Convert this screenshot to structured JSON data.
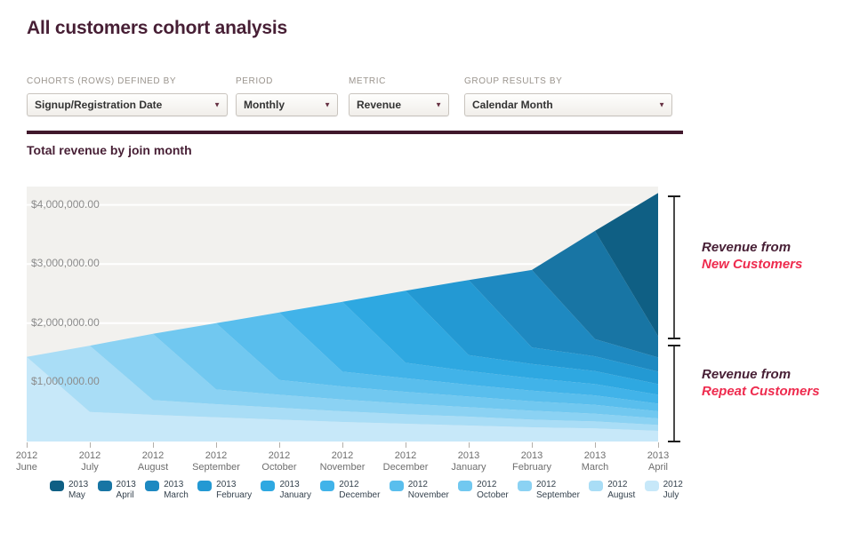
{
  "header": {
    "title": "All customers cohort analysis"
  },
  "filters": [
    {
      "label": "COHORTS (ROWS) DEFINED BY",
      "value": "Signup/Registration Date"
    },
    {
      "label": "PERIOD",
      "value": "Monthly"
    },
    {
      "label": "METRIC",
      "value": "Revenue"
    },
    {
      "label": "GROUP RESULTS BY",
      "value": "Calendar Month"
    }
  ],
  "annotations": {
    "new_customers": {
      "line1": "Revenue from",
      "line2": "New Customers"
    },
    "repeat_customers": {
      "line1": "Revenue from",
      "line2": "Repeat Customers"
    }
  },
  "colors": {
    "accent_maroon": "#471f35",
    "annotation_red": "#ee2b4e",
    "plot_bg": "#f2f1ee",
    "grid": "#ffffff",
    "axis_text": "#6e6e6e",
    "legend_text": "#35424e",
    "bracket": "#1c1c1c"
  },
  "icons": {
    "dropdown_arrow": "▼"
  },
  "chart_data": {
    "type": "area",
    "stacked": true,
    "title": "Total revenue by join month",
    "unit": "USD",
    "grid": "horizontal",
    "legend_position": "bottom",
    "legend_order": "newest-first",
    "ylim": [
      0,
      4310000
    ],
    "y_ticks": [
      {
        "label": "$4,000,000.00",
        "value": 4000000
      },
      {
        "label": "$3,000,000.00",
        "value": 3000000
      },
      {
        "label": "$2,000,000.00",
        "value": 2000000
      },
      {
        "label": "$1,000,000.00",
        "value": 1000000
      }
    ],
    "categories": [
      "2012 June",
      "2012 July",
      "2012 August",
      "2012 September",
      "2012 October",
      "2012 November",
      "2012 December",
      "2013 January",
      "2013 February",
      "2013 March",
      "2013 April"
    ],
    "totals_by_month": [
      1430000,
      1620000,
      1820000,
      2000000,
      2180000,
      2360000,
      2550000,
      2730000,
      2900000,
      3560000,
      4200000
    ],
    "series": [
      {
        "name": "2012 July",
        "color": "#c7e8f9",
        "values": [
          1430000,
          500000,
          450000,
          410000,
          370000,
          330000,
          300000,
          270000,
          240000,
          220000,
          180000
        ]
      },
      {
        "name": "2012 August",
        "color": "#a9ddf6",
        "values": [
          0,
          1120000,
          250000,
          220000,
          200000,
          180000,
          160000,
          150000,
          130000,
          120000,
          100000
        ]
      },
      {
        "name": "2012 September",
        "color": "#8bd2f3",
        "values": [
          0,
          0,
          1120000,
          250000,
          220000,
          200000,
          180000,
          160000,
          150000,
          130000,
          110000
        ]
      },
      {
        "name": "2012 October",
        "color": "#71c8f0",
        "values": [
          0,
          0,
          0,
          1120000,
          250000,
          220000,
          200000,
          180000,
          160000,
          150000,
          120000
        ]
      },
      {
        "name": "2012 November",
        "color": "#59beed",
        "values": [
          0,
          0,
          0,
          0,
          1140000,
          250000,
          230000,
          200000,
          180000,
          160000,
          130000
        ]
      },
      {
        "name": "2012 December",
        "color": "#41b3e9",
        "values": [
          0,
          0,
          0,
          0,
          0,
          1180000,
          260000,
          230000,
          210000,
          190000,
          150000
        ]
      },
      {
        "name": "2013 January",
        "color": "#2ea8e1",
        "values": [
          0,
          0,
          0,
          0,
          0,
          0,
          1220000,
          270000,
          240000,
          220000,
          180000
        ]
      },
      {
        "name": "2013 February",
        "color": "#2399d3",
        "values": [
          0,
          0,
          0,
          0,
          0,
          0,
          0,
          1270000,
          280000,
          250000,
          210000
        ]
      },
      {
        "name": "2013 March",
        "color": "#1e89c1",
        "values": [
          0,
          0,
          0,
          0,
          0,
          0,
          0,
          0,
          1310000,
          290000,
          240000
        ]
      },
      {
        "name": "2013 April",
        "color": "#1875a4",
        "values": [
          0,
          0,
          0,
          0,
          0,
          0,
          0,
          0,
          0,
          1830000,
          360000
        ]
      },
      {
        "name": "2013 May",
        "color": "#0f5f84",
        "values": [
          0,
          0,
          0,
          0,
          0,
          0,
          0,
          0,
          0,
          0,
          2420000
        ]
      }
    ]
  }
}
